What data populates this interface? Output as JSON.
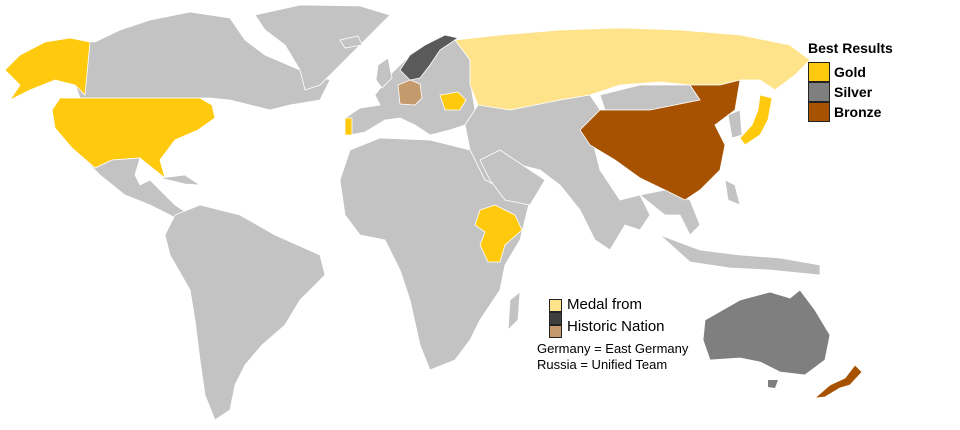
{
  "legend": {
    "title": "Best Results",
    "items": [
      {
        "label": "Gold",
        "color": "#ffc90e"
      },
      {
        "label": "Silver",
        "color": "#7f7f7f"
      },
      {
        "label": "Bronze",
        "color": "#a65200"
      }
    ]
  },
  "historic_legend": {
    "line1": "Medal from",
    "line2": "Historic Nation",
    "colors": [
      "#ffe38a",
      "#3f3f3f",
      "#c49a6c"
    ]
  },
  "notes": [
    "Germany = East Germany",
    "Russia = Unified Team"
  ],
  "colors": {
    "land": "#c3c3c3",
    "background": "#ffffff"
  }
}
